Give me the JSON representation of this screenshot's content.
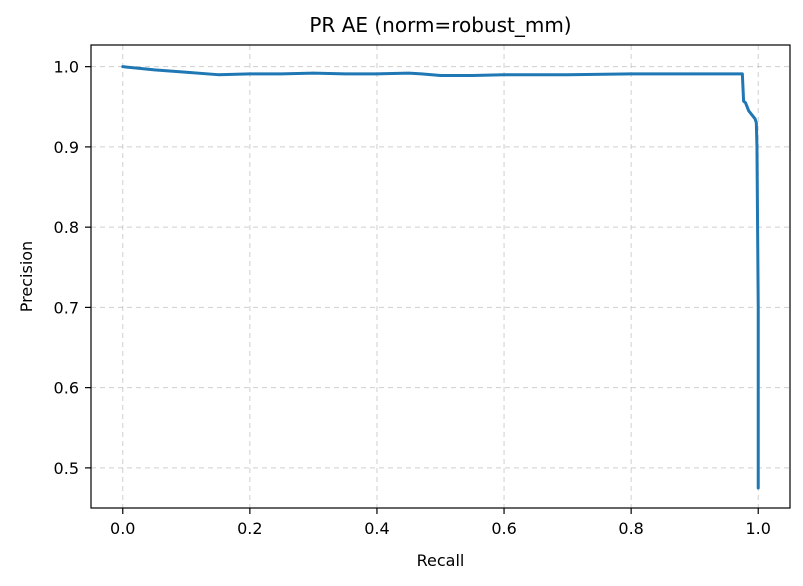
{
  "chart_data": {
    "type": "line",
    "title": "PR AE (norm=robust_mm)",
    "xlabel": "Recall",
    "ylabel": "Precision",
    "xlim": [
      -0.05,
      1.05
    ],
    "ylim": [
      0.45,
      1.027
    ],
    "grid": true,
    "grid_style": "dashed",
    "x_ticks": [
      0.0,
      0.2,
      0.4,
      0.6,
      0.8,
      1.0
    ],
    "x_tick_labels": [
      "0.0",
      "0.2",
      "0.4",
      "0.6",
      "0.8",
      "1.0"
    ],
    "y_ticks": [
      0.5,
      0.6,
      0.7,
      0.8,
      0.9,
      1.0
    ],
    "y_tick_labels": [
      "0.5",
      "0.6",
      "0.7",
      "0.8",
      "0.9",
      "1.0"
    ],
    "series": [
      {
        "color": "#1f77b4",
        "x": [
          0.0,
          0.05,
          0.1,
          0.15,
          0.2,
          0.25,
          0.3,
          0.35,
          0.4,
          0.45,
          0.47,
          0.5,
          0.55,
          0.6,
          0.7,
          0.8,
          0.9,
          0.975,
          0.977,
          0.98,
          0.985,
          0.99,
          0.995,
          0.997,
          0.998,
          0.999,
          1.0,
          1.0
        ],
        "y": [
          1.0,
          0.996,
          0.993,
          0.99,
          0.991,
          0.991,
          0.992,
          0.991,
          0.991,
          0.992,
          0.991,
          0.989,
          0.989,
          0.99,
          0.99,
          0.991,
          0.991,
          0.991,
          0.957,
          0.955,
          0.945,
          0.94,
          0.935,
          0.93,
          0.9,
          0.8,
          0.7,
          0.475
        ]
      }
    ]
  },
  "colors": {
    "line": "#1f77b4",
    "grid": "#b0b0b0",
    "axes": "#000000"
  }
}
